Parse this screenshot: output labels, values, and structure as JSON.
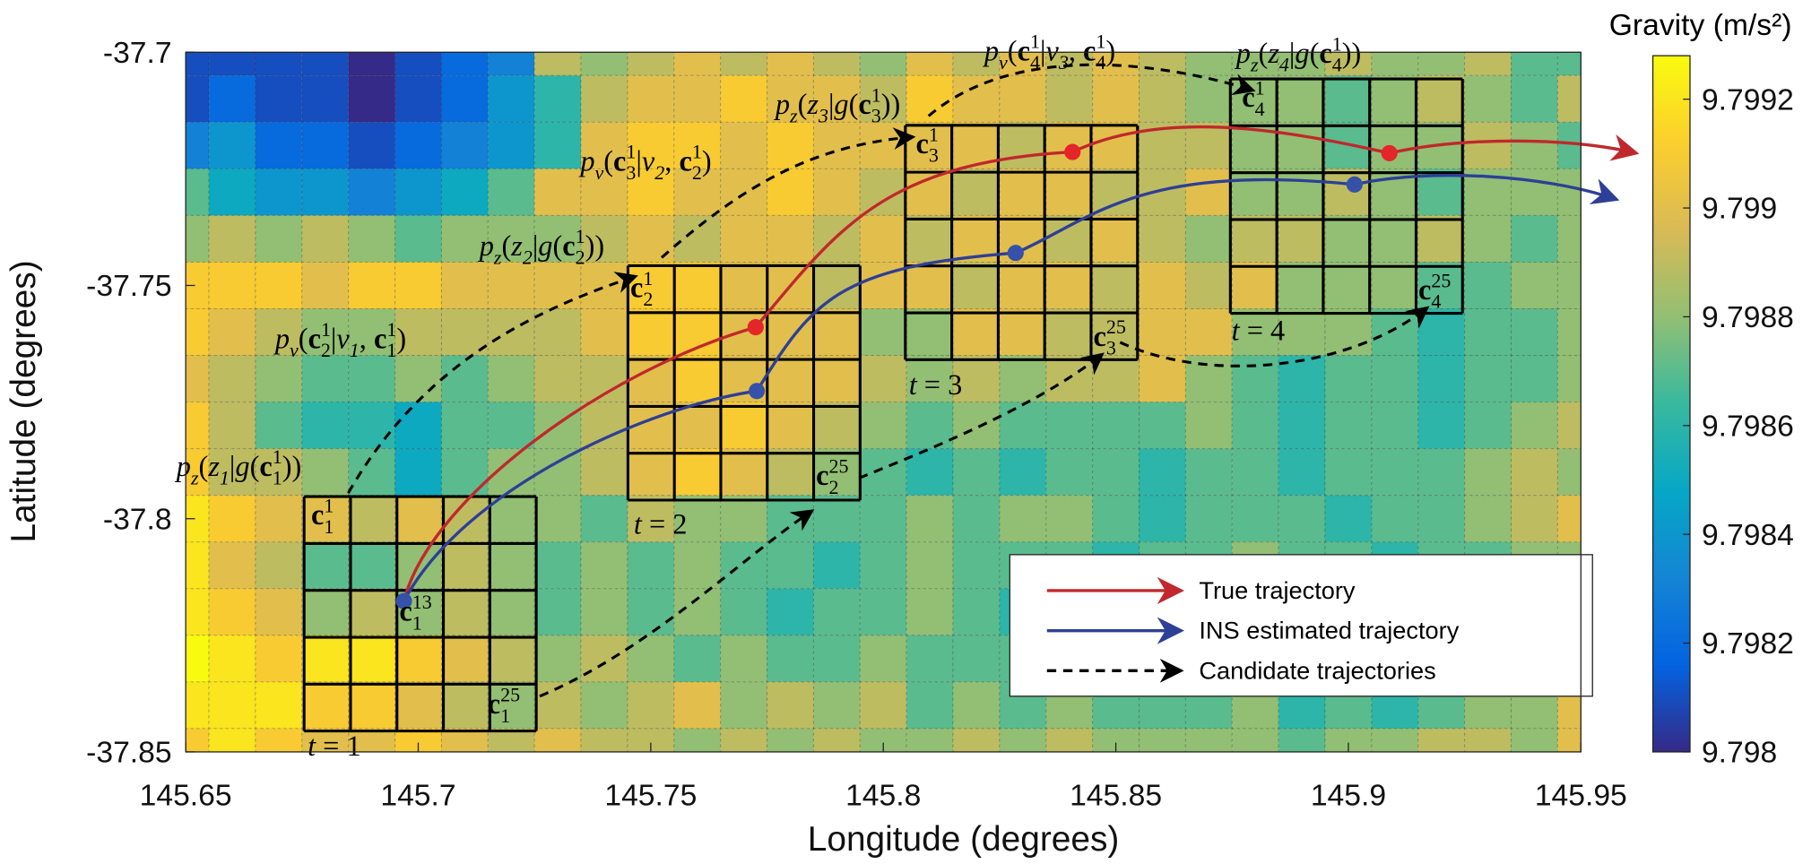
{
  "chart_data": {
    "type": "heatmap",
    "xlabel": "Longitude (degrees)",
    "ylabel": "Latitude (degrees)",
    "xlim": [
      145.65,
      145.95
    ],
    "ylim": [
      -37.85,
      -37.7
    ],
    "xticks": [
      145.65,
      145.7,
      145.75,
      145.8,
      145.85,
      145.9,
      145.95
    ],
    "yticks": [
      -37.85,
      -37.8,
      -37.75,
      -37.7
    ],
    "grid": true,
    "x": [
      145.65,
      145.66,
      145.67,
      145.68,
      145.69,
      145.7,
      145.71,
      145.72,
      145.73,
      145.74,
      145.75,
      145.76,
      145.77,
      145.78,
      145.79,
      145.8,
      145.81,
      145.82,
      145.83,
      145.84,
      145.85,
      145.86,
      145.87,
      145.88,
      145.89,
      145.9,
      145.91,
      145.92,
      145.93,
      145.94,
      145.95
    ],
    "y": [
      -37.7,
      -37.71,
      -37.72,
      -37.73,
      -37.74,
      -37.75,
      -37.76,
      -37.77,
      -37.78,
      -37.79,
      -37.8,
      -37.81,
      -37.82,
      -37.83,
      -37.84,
      -37.85
    ],
    "z": [
      [
        9.7981,
        9.7981,
        9.7981,
        9.7981,
        9.798,
        9.7981,
        9.7982,
        9.7983,
        9.7989,
        9.7988,
        9.7989,
        9.799,
        9.7989,
        9.799,
        9.7989,
        9.7988,
        9.799,
        9.7989,
        9.799,
        9.7989,
        9.799,
        9.7989,
        9.7988,
        9.7988,
        9.7988,
        9.7989,
        9.7988,
        9.7988,
        9.7989,
        9.7987,
        9.7987
      ],
      [
        9.7981,
        9.7982,
        9.7981,
        9.7981,
        9.798,
        9.7981,
        9.7982,
        9.7984,
        9.7986,
        9.7989,
        9.799,
        9.799,
        9.7991,
        9.799,
        9.799,
        9.7989,
        9.7991,
        9.799,
        9.799,
        9.7989,
        9.799,
        9.7989,
        9.7988,
        9.7988,
        9.7988,
        9.7987,
        9.7988,
        9.7989,
        9.7988,
        9.7987,
        9.7989
      ],
      [
        9.7983,
        9.7984,
        9.7982,
        9.7982,
        9.7981,
        9.7982,
        9.7983,
        9.7984,
        9.7986,
        9.799,
        9.7991,
        9.7991,
        9.799,
        9.7991,
        9.799,
        9.799,
        9.799,
        9.799,
        9.7989,
        9.799,
        9.799,
        9.7989,
        9.7989,
        9.7988,
        9.7988,
        9.7987,
        9.7988,
        9.7988,
        9.7989,
        9.7988,
        9.7987
      ],
      [
        9.7987,
        9.7985,
        9.7984,
        9.7984,
        9.7983,
        9.7984,
        9.7985,
        9.7987,
        9.799,
        9.799,
        9.7991,
        9.799,
        9.799,
        9.7991,
        9.799,
        9.7989,
        9.799,
        9.7989,
        9.799,
        9.799,
        9.7989,
        9.7989,
        9.799,
        9.7988,
        9.7988,
        9.7989,
        9.7988,
        9.7987,
        9.7988,
        9.7988,
        9.7988
      ],
      [
        9.7988,
        9.7989,
        9.7988,
        9.7989,
        9.7988,
        9.7987,
        9.7988,
        9.7988,
        9.7988,
        9.7989,
        9.799,
        9.7989,
        9.799,
        9.799,
        9.7989,
        9.799,
        9.7989,
        9.799,
        9.799,
        9.7989,
        9.799,
        9.7989,
        9.7988,
        9.7989,
        9.7989,
        9.7988,
        9.7988,
        9.7989,
        9.7988,
        9.7987,
        9.7988
      ],
      [
        9.7991,
        9.7991,
        9.7991,
        9.799,
        9.7991,
        9.7991,
        9.799,
        9.799,
        9.799,
        9.799,
        9.7991,
        9.7991,
        9.799,
        9.799,
        9.7989,
        9.799,
        9.799,
        9.7989,
        9.799,
        9.799,
        9.7989,
        9.799,
        9.7989,
        9.799,
        9.7988,
        9.7988,
        9.7988,
        9.7987,
        9.7987,
        9.7988,
        9.7988
      ],
      [
        9.7991,
        9.799,
        9.7989,
        9.7988,
        9.7988,
        9.7989,
        9.7989,
        9.7989,
        9.7989,
        9.799,
        9.7991,
        9.7991,
        9.799,
        9.799,
        9.799,
        9.7988,
        9.7988,
        9.799,
        9.799,
        9.7989,
        9.7989,
        9.799,
        9.799,
        9.7988,
        9.7988,
        9.7988,
        9.7987,
        9.7986,
        9.7987,
        9.7987,
        9.7988
      ],
      [
        9.799,
        9.7989,
        9.7988,
        9.7987,
        9.7987,
        9.7988,
        9.7987,
        9.7988,
        9.7989,
        9.7989,
        9.799,
        9.7991,
        9.799,
        9.799,
        9.799,
        9.7989,
        9.7988,
        9.7989,
        9.7988,
        9.7989,
        9.7989,
        9.799,
        9.7988,
        9.7987,
        9.7986,
        9.7987,
        9.7987,
        9.7986,
        9.7987,
        9.7987,
        9.7988
      ],
      [
        9.7991,
        9.7989,
        9.7987,
        9.7986,
        9.7986,
        9.7985,
        9.7987,
        9.7987,
        9.7988,
        9.7989,
        9.799,
        9.799,
        9.7991,
        9.799,
        9.7989,
        9.7988,
        9.7987,
        9.7988,
        9.7987,
        9.7987,
        9.7987,
        9.7987,
        9.7988,
        9.7987,
        9.7986,
        9.7987,
        9.7987,
        9.7986,
        9.7987,
        9.7988,
        9.7989
      ],
      [
        9.7991,
        9.7989,
        9.7989,
        9.7988,
        9.7987,
        9.7985,
        9.7987,
        9.7988,
        9.7988,
        9.7989,
        9.799,
        9.7991,
        9.799,
        9.7989,
        9.7988,
        9.7987,
        9.7986,
        9.7987,
        9.7986,
        9.7987,
        9.7987,
        9.7986,
        9.7987,
        9.7987,
        9.7986,
        9.7987,
        9.7987,
        9.7987,
        9.7988,
        9.7989,
        9.7988
      ],
      [
        9.7992,
        9.7991,
        9.799,
        9.799,
        9.7989,
        9.799,
        9.7989,
        9.7988,
        9.7988,
        9.7987,
        9.7989,
        9.7988,
        9.7988,
        9.7987,
        9.7987,
        9.7987,
        9.7988,
        9.7987,
        9.7988,
        9.7988,
        9.7987,
        9.7986,
        9.7987,
        9.7987,
        9.7987,
        9.7986,
        9.7987,
        9.7987,
        9.7988,
        9.7989,
        9.799
      ],
      [
        9.7992,
        9.799,
        9.7989,
        9.7987,
        9.7987,
        9.7988,
        9.7989,
        9.7988,
        9.7987,
        9.7988,
        9.7987,
        9.7988,
        9.7987,
        9.7987,
        9.7986,
        9.7987,
        9.7988,
        9.7987,
        9.7987,
        9.7987,
        9.7986,
        9.7987,
        9.7987,
        9.7988,
        9.7987,
        9.7987,
        9.7986,
        9.7987,
        9.7987,
        9.7988,
        9.7988
      ],
      [
        9.7992,
        9.7991,
        9.799,
        9.7988,
        9.7989,
        9.7988,
        9.7989,
        9.7988,
        9.7987,
        9.7988,
        9.7987,
        9.7988,
        9.7987,
        9.7986,
        9.7987,
        9.7987,
        9.7988,
        9.7987,
        9.7986,
        9.7987,
        9.7987,
        9.7988,
        9.7987,
        9.7986,
        9.7987,
        9.7987,
        9.7987,
        9.7986,
        9.7987,
        9.7987,
        9.7988
      ],
      [
        9.7993,
        9.7992,
        9.7991,
        9.7992,
        9.7992,
        9.7991,
        9.799,
        9.7989,
        9.7988,
        9.7989,
        9.7988,
        9.7987,
        9.7988,
        9.7987,
        9.7987,
        9.7988,
        9.7987,
        9.7987,
        9.7987,
        9.7986,
        9.7987,
        9.7987,
        9.7986,
        9.7987,
        9.7986,
        9.7987,
        9.7987,
        9.7986,
        9.7987,
        9.7988,
        9.7989
      ],
      [
        9.7992,
        9.7992,
        9.7992,
        9.7991,
        9.7991,
        9.799,
        9.7989,
        9.7988,
        9.7989,
        9.7988,
        9.7989,
        9.799,
        9.7988,
        9.7989,
        9.7988,
        9.7989,
        9.7987,
        9.7988,
        9.7987,
        9.7988,
        9.7987,
        9.7987,
        9.7987,
        9.7988,
        9.7986,
        9.7987,
        9.7986,
        9.7987,
        9.7988,
        9.7988,
        9.799
      ],
      [
        9.7991,
        9.7992,
        9.7991,
        9.799,
        9.799,
        9.7991,
        9.799,
        9.7989,
        9.799,
        9.7989,
        9.7989,
        9.7988,
        9.7989,
        9.7988,
        9.7989,
        9.7988,
        9.7988,
        9.7989,
        9.7988,
        9.7989,
        9.7988,
        9.7988,
        9.7988,
        9.7988,
        9.7987,
        9.7988,
        9.7988,
        9.7989,
        9.7989,
        9.7988,
        9.799
      ]
    ],
    "colorbar": {
      "title": "Gravity (m/s²)",
      "clim": [
        9.798,
        9.79928
      ],
      "ticks": [
        9.798,
        9.7982,
        9.7984,
        9.7986,
        9.7988,
        9.799,
        9.7992
      ],
      "colormap": [
        "#352a87",
        "#0363e1",
        "#1485d4",
        "#06a7c6",
        "#38b99e",
        "#92bf73",
        "#d9ba56",
        "#fcce2e",
        "#f9fb0e"
      ]
    },
    "legend": [
      {
        "name": "True trajectory",
        "color": "#c0282d"
      },
      {
        "name": "INS estimated trajectory",
        "color": "#2e3f96"
      },
      {
        "name": "Candidate trajectories",
        "color": "#000000"
      }
    ],
    "annotations": [
      [
        [
          "p",
          "i"
        ],
        [
          "z",
          "sub"
        ],
        [
          "(",
          "n"
        ],
        [
          "z",
          "i"
        ],
        [
          "1",
          "sub"
        ],
        [
          "|",
          "n"
        ],
        [
          "g",
          "i"
        ],
        [
          "(",
          "n"
        ],
        [
          "c",
          "b"
        ],
        [
          "1",
          "sup"
        ],
        [
          "1",
          "subx"
        ],
        [
          "))",
          "n"
        ]
      ],
      [
        [
          "p",
          "i"
        ],
        [
          "v",
          "sub"
        ],
        [
          "(",
          "n"
        ],
        [
          "c",
          "b"
        ],
        [
          "1",
          "sup"
        ],
        [
          "2",
          "subx"
        ],
        [
          "|",
          "n"
        ],
        [
          "v",
          "i"
        ],
        [
          "1",
          "sub"
        ],
        [
          ", ",
          "n"
        ],
        [
          "c",
          "b"
        ],
        [
          "1",
          "sup"
        ],
        [
          "1",
          "subx"
        ],
        [
          ")",
          "n"
        ]
      ],
      [
        [
          "p",
          "i"
        ],
        [
          "z",
          "sub"
        ],
        [
          "(",
          "n"
        ],
        [
          "z",
          "i"
        ],
        [
          "2",
          "sub"
        ],
        [
          "|",
          "n"
        ],
        [
          "g",
          "i"
        ],
        [
          "(",
          "n"
        ],
        [
          "c",
          "b"
        ],
        [
          "1",
          "sup"
        ],
        [
          "2",
          "subx"
        ],
        [
          "))",
          "n"
        ]
      ],
      [
        [
          "p",
          "i"
        ],
        [
          "v",
          "sub"
        ],
        [
          "(",
          "n"
        ],
        [
          "c",
          "b"
        ],
        [
          "1",
          "sup"
        ],
        [
          "3",
          "subx"
        ],
        [
          "|",
          "n"
        ],
        [
          "v",
          "i"
        ],
        [
          "2",
          "sub"
        ],
        [
          ", ",
          "n"
        ],
        [
          "c",
          "b"
        ],
        [
          "1",
          "sup"
        ],
        [
          "2",
          "subx"
        ],
        [
          ")",
          "n"
        ]
      ],
      [
        [
          "p",
          "i"
        ],
        [
          "z",
          "sub"
        ],
        [
          "(",
          "n"
        ],
        [
          "z",
          "i"
        ],
        [
          "3",
          "sub"
        ],
        [
          "|",
          "n"
        ],
        [
          "g",
          "i"
        ],
        [
          "(",
          "n"
        ],
        [
          "c",
          "b"
        ],
        [
          "1",
          "sup"
        ],
        [
          "3",
          "subx"
        ],
        [
          "))",
          "n"
        ]
      ],
      [
        [
          "p",
          "i"
        ],
        [
          "v",
          "sub"
        ],
        [
          "(",
          "n"
        ],
        [
          "c",
          "b"
        ],
        [
          "1",
          "sup"
        ],
        [
          "4",
          "subx"
        ],
        [
          "|",
          "n"
        ],
        [
          "v",
          "i"
        ],
        [
          "3",
          "sub"
        ],
        [
          ", ",
          "n"
        ],
        [
          "c",
          "b"
        ],
        [
          "1",
          "sup"
        ],
        [
          "4",
          "subx"
        ],
        [
          ")",
          "n"
        ]
      ],
      [
        [
          "p",
          "i"
        ],
        [
          "z",
          "sub"
        ],
        [
          "(",
          "n"
        ],
        [
          "z",
          "i"
        ],
        [
          "4",
          "sub"
        ],
        [
          "|",
          "n"
        ],
        [
          "g",
          "i"
        ],
        [
          "(",
          "n"
        ],
        [
          "c",
          "b"
        ],
        [
          "1",
          "sup"
        ],
        [
          "4",
          "subx"
        ],
        [
          "))",
          "n"
        ]
      ],
      [
        [
          "c",
          "b"
        ],
        [
          "1",
          "sup"
        ],
        [
          "1",
          "subx"
        ]
      ],
      [
        [
          "c",
          "b"
        ],
        [
          "13",
          "sup"
        ],
        [
          "1",
          "subx"
        ]
      ],
      [
        [
          "c",
          "b"
        ],
        [
          "25",
          "sup"
        ],
        [
          "1",
          "subx"
        ]
      ],
      [
        [
          "c",
          "b"
        ],
        [
          "1",
          "sup"
        ],
        [
          "2",
          "subx"
        ]
      ],
      [
        [
          "c",
          "b"
        ],
        [
          "25",
          "sup"
        ],
        [
          "2",
          "subx"
        ]
      ],
      [
        [
          "c",
          "b"
        ],
        [
          "1",
          "sup"
        ],
        [
          "3",
          "subx"
        ]
      ],
      [
        [
          "c",
          "b"
        ],
        [
          "25",
          "sup"
        ],
        [
          "3",
          "subx"
        ]
      ],
      [
        [
          "c",
          "b"
        ],
        [
          "1",
          "sup"
        ],
        [
          "4",
          "subx"
        ]
      ],
      [
        [
          "c",
          "b"
        ],
        [
          "25",
          "sup"
        ],
        [
          "4",
          "subx"
        ]
      ],
      [
        [
          "t",
          "i"
        ],
        [
          " = 1",
          "n"
        ]
      ],
      [
        [
          "t",
          "i"
        ],
        [
          " = 2",
          "n"
        ]
      ],
      [
        [
          "t",
          "i"
        ],
        [
          " = 3",
          "n"
        ]
      ],
      [
        [
          "t",
          "i"
        ],
        [
          " = 4",
          "n"
        ]
      ]
    ]
  }
}
